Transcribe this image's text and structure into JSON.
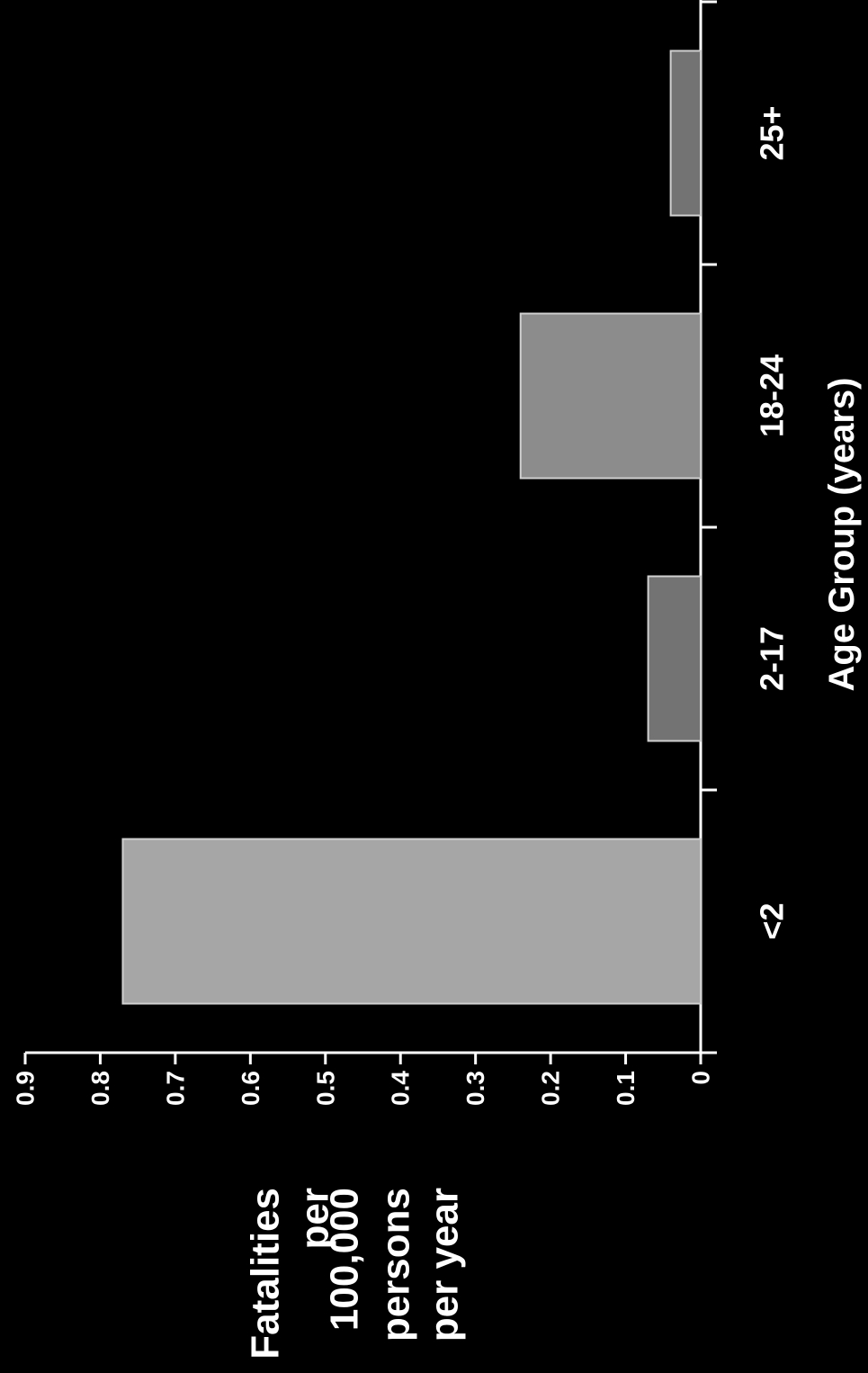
{
  "chart_data": {
    "type": "bar",
    "orientation": "rotated-90-clockwise",
    "categories": [
      "<2",
      "2-17",
      "18-24",
      "25+"
    ],
    "series": [
      {
        "values": [
          0.77,
          0.07,
          0.24,
          0.04
        ]
      }
    ],
    "ylim": [
      0,
      0.9
    ],
    "yticks": [
      "0",
      "0.1",
      "0.2",
      "0.3",
      "0.4",
      "0.5",
      "0.6",
      "0.7",
      "0.8",
      "0.9"
    ],
    "xlabel": "Age Group (years)",
    "ylabel_lines": [
      "Fatalities",
      "per",
      "100,000",
      "persons",
      "per year"
    ],
    "title": "",
    "grid": false,
    "colors": {
      "background": "#000000",
      "axis": "#ffffff",
      "text": "#ffffff",
      "bar_fills": [
        "#a6a6a6",
        "#737373",
        "#8c8c8c",
        "#737373"
      ],
      "bar_stroke": "#d0d0d0"
    }
  }
}
